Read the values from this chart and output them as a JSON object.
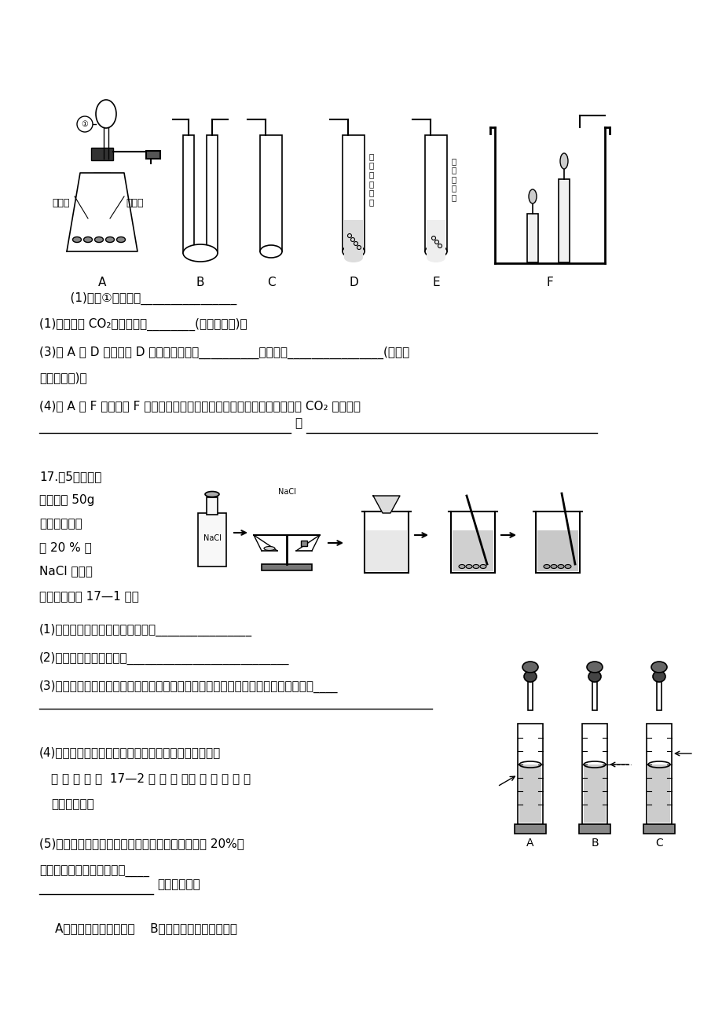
{
  "bg_color": "#ffffff",
  "text_color": "#000000",
  "line_color": "#000000",
  "page_width": 9.2,
  "page_height": 13.02,
  "top_section": {
    "labels_A": [
      "大理石",
      "稀盐酸"
    ],
    "labels_diagram": [
      "①—",
      "A",
      "B",
      "C",
      "D",
      "E",
      "F"
    ],
    "label_D": "紫\n色\n石\n蕊\n溶\n液",
    "label_E": "澄\n清\n石\n灰\n水"
  },
  "questions_part1": [
    "    (1)仪器①的名称为________________",
    "(1)收集少量 CO₂气体应选择________(填装置序号)。",
    "(3)若 A 与 D 连接，则 D 中出现的现象是__________，原因是________________(用化学",
    "方程式表示)。",
    "(4)若 A 与 F 连接，则 F 中低的蜡烛先熄灭，高的蜡烛后熄灭，由此说明了 CO₂ 的性质有"
  ],
  "q4_line1": "____________________________",
  "q4_comma": "、",
  "q4_line2": "____________________________",
  "q17_header": "17.（5分）小华\n同学配制 50g\n溶质质量分数\n为 20 % 的\nNaCl 溶液，\n操作流程如题 17—1 图：",
  "questions_part2": [
    "(1)小华同学应称取氯化钠的质量是________________",
    "(2)指出图中的一处错误：___________________________",
    "(3)在用托盘天平称取食盐的过程中，发现指针已偏向分度盘左侧，他接下来的操作是____"
  ],
  "q3_line2": "____________________________",
  "q4_text": "(4)在用量筒量取水的过程巾，当液面接近刻度线时，他\n   的 操 作 如 题 17—2 图 所 示 ，其 中 规 范 的 是\n   (填序号)。",
  "q5_text": "(5)如果小华配制的氯化钠溶液的溶质质量分数小于 20%，\n则造成此误差的可能原因有____\n________（填序号）。",
  "q5_options": "    A．称量前天平没有调平    B．称量纸上残留少量食盐",
  "nacl_label": "NaCl"
}
